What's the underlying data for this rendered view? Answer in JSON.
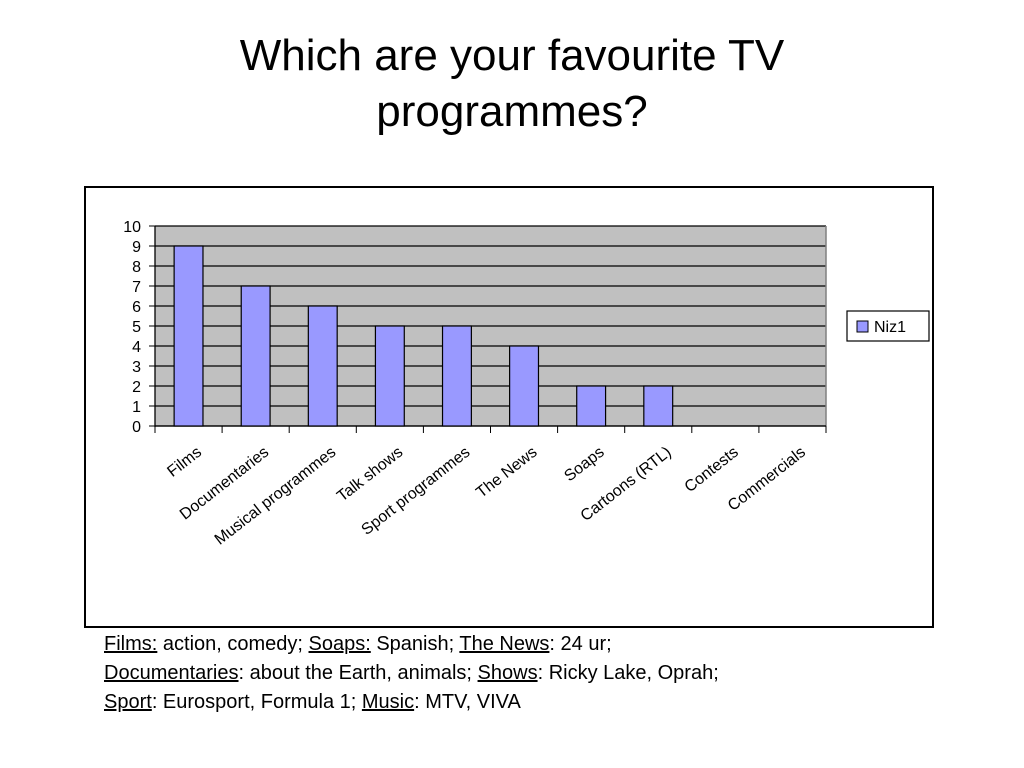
{
  "slide": {
    "title_line1": "Which are your favourite TV",
    "title_line2": "programmes?"
  },
  "chart_data": {
    "type": "bar",
    "categories": [
      "Films",
      "Documentaries",
      "Musical programmes",
      "Talk shows",
      "Sport programmes",
      "The News",
      "Soaps",
      "Cartoons (RTL)",
      "Contests",
      "Commercials"
    ],
    "series": [
      {
        "name": "Niz1",
        "values": [
          9,
          7,
          6,
          5,
          5,
          4,
          2,
          2,
          0,
          0
        ]
      }
    ],
    "ylim": [
      0,
      10
    ],
    "yticks": [
      "0",
      "1",
      "2",
      "3",
      "4",
      "5",
      "6",
      "7",
      "8",
      "9",
      "10"
    ],
    "grid": true,
    "legend_position": "right",
    "colors": {
      "bar": "#9999ff",
      "plot_background": "#c0c0c0",
      "gridline": "#000000"
    }
  },
  "caption": {
    "line1": [
      {
        "term": "Films:",
        "text": " action, comedy; "
      },
      {
        "term": "Soaps:",
        "text": " Spanish; "
      },
      {
        "term": "The News",
        "text": ": 24 ur;"
      }
    ],
    "line2": [
      {
        "term": "Documentaries",
        "text": ": about the Earth, animals; "
      },
      {
        "term": "Shows",
        "text": ": Ricky Lake, Oprah;"
      }
    ],
    "line3": [
      {
        "term": "Sport",
        "text": ": Eurosport, Formula 1; "
      },
      {
        "term": "Music",
        "text": ": MTV, VIVA"
      }
    ]
  }
}
